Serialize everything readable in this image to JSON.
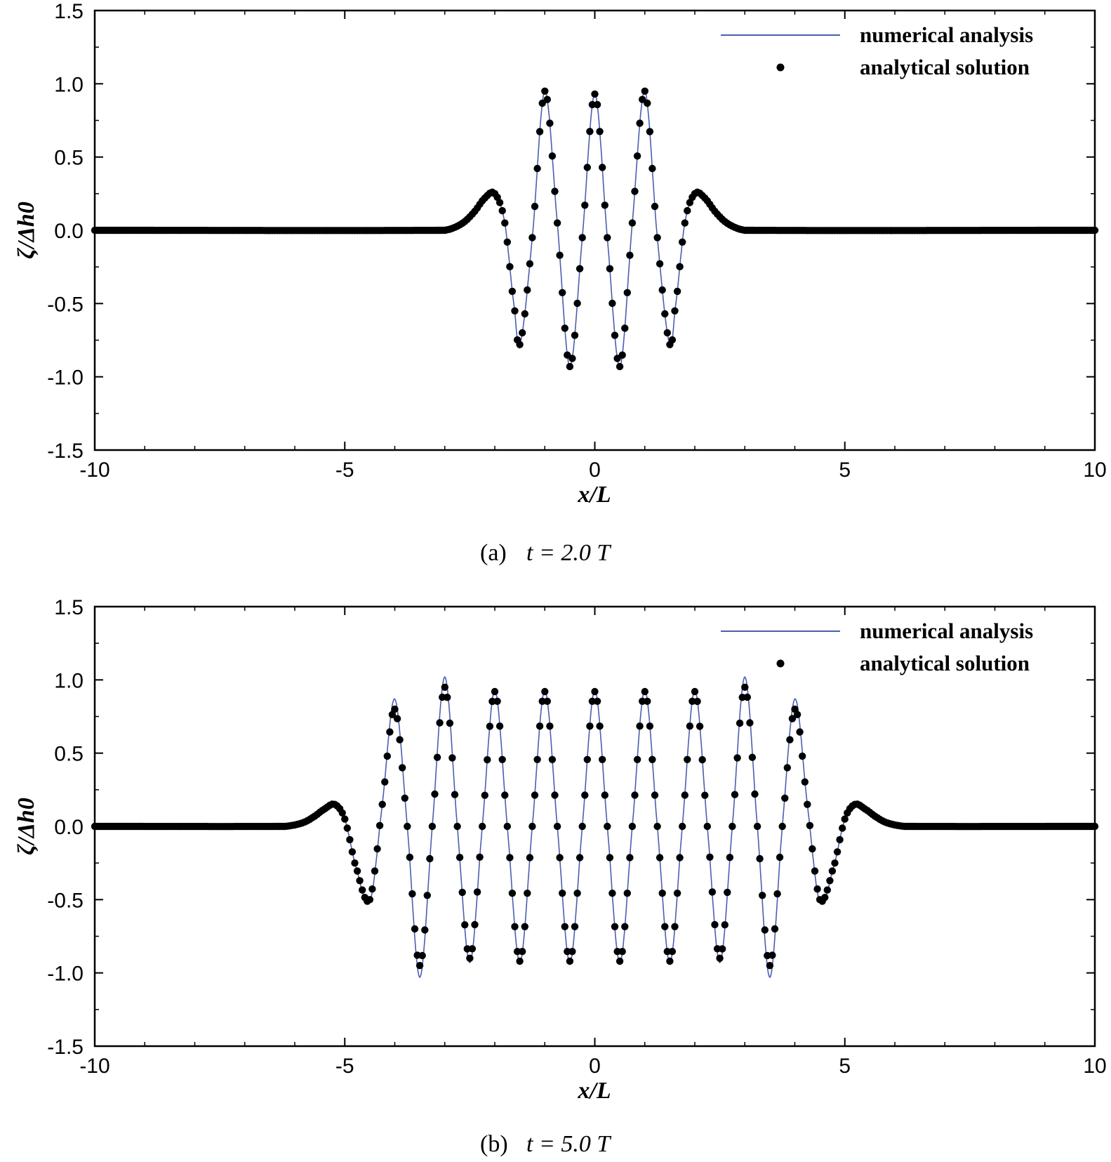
{
  "chart_data": [
    {
      "type": "line",
      "panel": "a",
      "caption_label": "(a)",
      "caption_eq": "t = 2.0 T",
      "xlabel": "x/L",
      "ylabel": "ζ/Δh0",
      "xlim": [
        -10,
        10
      ],
      "ylim": [
        -1.5,
        1.5
      ],
      "xticks": [
        "-10",
        "-5",
        "0",
        "5",
        "10"
      ],
      "yticks": [
        "1.5",
        "1.0",
        "0.5",
        "0.0",
        "-0.5",
        "-1.0",
        "-1.5"
      ],
      "legend_position": "top-right",
      "grid": false,
      "series": [
        {
          "name": "numerical analysis",
          "style": "line",
          "color": "#4a5fb0",
          "x": [
            -10,
            -3,
            -2.8,
            -2.6,
            -2.4,
            -2.2,
            -2.0,
            -1.8,
            -1.6,
            -1.5,
            -1.25,
            -1.0,
            -0.75,
            -0.5,
            -0.25,
            0,
            0.25,
            0.5,
            0.75,
            1.0,
            1.25,
            1.5,
            1.6,
            1.8,
            2.0,
            2.2,
            2.4,
            2.6,
            2.8,
            3,
            10
          ],
          "y": [
            0,
            0,
            0.02,
            0.06,
            0.13,
            0.22,
            0.25,
            0.05,
            -0.55,
            -0.78,
            -0.05,
            0.95,
            0.05,
            -0.93,
            -0.05,
            0.93,
            -0.05,
            -0.93,
            0.05,
            0.95,
            -0.05,
            -0.78,
            -0.55,
            0.05,
            0.25,
            0.22,
            0.13,
            0.06,
            0.02,
            0,
            0
          ]
        },
        {
          "name": "analytical solution",
          "style": "markers",
          "color": "#000000",
          "x": [
            -10,
            -3,
            -2.8,
            -2.6,
            -2.4,
            -2.2,
            -2.0,
            -1.8,
            -1.6,
            -1.5,
            -1.25,
            -1.0,
            -0.75,
            -0.5,
            -0.25,
            0,
            0.25,
            0.5,
            0.75,
            1.0,
            1.25,
            1.5,
            1.6,
            1.8,
            2.0,
            2.2,
            2.4,
            2.6,
            2.8,
            3,
            10
          ],
          "y": [
            0,
            0,
            0.02,
            0.06,
            0.13,
            0.22,
            0.25,
            0.05,
            -0.55,
            -0.78,
            -0.05,
            0.95,
            0.05,
            -0.93,
            -0.05,
            0.93,
            -0.05,
            -0.93,
            0.05,
            0.95,
            -0.05,
            -0.78,
            -0.55,
            0.05,
            0.25,
            0.22,
            0.13,
            0.06,
            0.02,
            0,
            0
          ]
        }
      ]
    },
    {
      "type": "line",
      "panel": "b",
      "caption_label": "(b)",
      "caption_eq": "t = 5.0 T",
      "xlabel": "x/L",
      "ylabel": "ζ/Δh0",
      "xlim": [
        -10,
        10
      ],
      "ylim": [
        -1.5,
        1.5
      ],
      "xticks": [
        "-10",
        "-5",
        "0",
        "5",
        "10"
      ],
      "yticks": [
        "1.5",
        "1.0",
        "0.5",
        "0.0",
        "-0.5",
        "-1.0",
        "-1.5"
      ],
      "legend_position": "top-right",
      "grid": false,
      "series": [
        {
          "name": "numerical analysis",
          "style": "line",
          "color": "#4a5fb0",
          "x": [
            -10,
            -6.2,
            -6.0,
            -5.8,
            -5.6,
            -5.4,
            -5.2,
            -5.0,
            -4.8,
            -4.5,
            -4.25,
            -4.0,
            -3.75,
            -3.5,
            -3.25,
            -3.0,
            -2.75,
            -2.5,
            -2.25,
            -2.0,
            -1.75,
            -1.5,
            -1.25,
            -1.0,
            -0.75,
            -0.5,
            -0.25,
            0,
            0.25,
            0.5,
            0.75,
            1.0,
            1.25,
            1.5,
            1.75,
            2.0,
            2.25,
            2.5,
            2.75,
            3.0,
            3.25,
            3.5,
            3.75,
            4.0,
            4.25,
            4.5,
            4.8,
            5.0,
            5.2,
            5.4,
            5.6,
            5.8,
            6.0,
            6.2,
            10
          ],
          "y": [
            0,
            0,
            0.01,
            0.03,
            0.07,
            0.12,
            0.15,
            0.05,
            -0.25,
            -0.52,
            0.15,
            0.87,
            0.0,
            -1.03,
            0.0,
            1.02,
            0.0,
            -0.93,
            0.0,
            0.93,
            0.0,
            -0.93,
            0.0,
            0.93,
            0.0,
            -0.93,
            0.0,
            0.93,
            0.0,
            -0.93,
            0.0,
            0.93,
            0.0,
            -0.93,
            0.0,
            0.93,
            0.0,
            -0.93,
            0.0,
            1.02,
            0.0,
            -1.03,
            0.0,
            0.87,
            0.15,
            -0.52,
            -0.25,
            0.05,
            0.15,
            0.12,
            0.07,
            0.03,
            0.01,
            0,
            0
          ]
        },
        {
          "name": "analytical solution",
          "style": "markers",
          "color": "#000000",
          "x": [
            -10,
            -6.2,
            -6.0,
            -5.8,
            -5.6,
            -5.4,
            -5.2,
            -5.0,
            -4.8,
            -4.5,
            -4.25,
            -4.0,
            -3.75,
            -3.5,
            -3.25,
            -3.0,
            -2.75,
            -2.5,
            -2.25,
            -2.0,
            -1.75,
            -1.5,
            -1.25,
            -1.0,
            -0.75,
            -0.5,
            -0.25,
            0,
            0.25,
            0.5,
            0.75,
            1.0,
            1.25,
            1.5,
            1.75,
            2.0,
            2.25,
            2.5,
            2.75,
            3.0,
            3.25,
            3.5,
            3.75,
            4.0,
            4.25,
            4.5,
            4.8,
            5.0,
            5.2,
            5.4,
            5.6,
            5.8,
            6.0,
            6.2,
            10
          ],
          "y": [
            0,
            0,
            0.01,
            0.03,
            0.07,
            0.12,
            0.15,
            0.05,
            -0.25,
            -0.5,
            0.15,
            0.8,
            0.0,
            -0.95,
            0.0,
            0.95,
            0.0,
            -0.9,
            0.0,
            0.92,
            0.0,
            -0.92,
            0.0,
            0.92,
            0.0,
            -0.92,
            0.0,
            0.92,
            0.0,
            -0.92,
            0.0,
            0.92,
            0.0,
            -0.92,
            0.0,
            0.92,
            0.0,
            -0.9,
            0.0,
            0.95,
            0.0,
            -0.95,
            0.0,
            0.8,
            0.15,
            -0.5,
            -0.25,
            0.05,
            0.15,
            0.12,
            0.07,
            0.03,
            0.01,
            0,
            0
          ]
        }
      ]
    }
  ]
}
